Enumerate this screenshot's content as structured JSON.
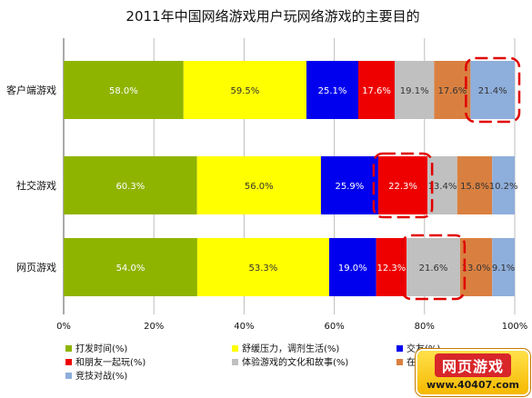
{
  "chart_data": {
    "type": "bar",
    "orientation": "horizontal",
    "stacked": "percent",
    "title": "2011年中国网络游戏用户玩网络游戏的主要目的",
    "categories": [
      "客户端游戏",
      "社交游戏",
      "网页游戏"
    ],
    "x_ticks": [
      "0%",
      "20%",
      "40%",
      "60%",
      "80%",
      "100%"
    ],
    "xlim": [
      0,
      100
    ],
    "grid": true,
    "legend_position": "bottom",
    "series": [
      {
        "name": "打发时间(%)",
        "color": "#8fb400",
        "label_color": "#ffffff",
        "values": [
          58.0,
          60.3,
          54.0
        ],
        "labels": [
          "58.0%",
          "60.3%",
          "54.0%"
        ]
      },
      {
        "name": "舒缓压力，调剂生活(%)",
        "color": "#ffff00",
        "label_color": "#333333",
        "values": [
          59.5,
          56.0,
          53.3
        ],
        "labels": [
          "59.5%",
          "56.0%",
          "53.3%"
        ]
      },
      {
        "name": "交友(%)",
        "color": "#0000ee",
        "label_color": "#ffffff",
        "values": [
          25.1,
          25.9,
          19.0
        ],
        "labels": [
          "25.1%",
          "25.9%",
          "19.0%"
        ]
      },
      {
        "name": "和朋友一起玩(%)",
        "color": "#ee0000",
        "label_color": "#ffffff",
        "values": [
          17.6,
          22.3,
          12.3
        ],
        "labels": [
          "17.6%",
          "22.3%",
          "12.3%"
        ]
      },
      {
        "name": "体验游戏的文化和故事(%)",
        "color": "#c0c0c0",
        "label_color": "#333333",
        "values": [
          19.1,
          13.4,
          21.6
        ],
        "labels": [
          "19.1%",
          "13.4%",
          "21.6%"
        ]
      },
      {
        "name": "在",
        "color": "#d98040",
        "label_color": "#333333",
        "values": [
          17.6,
          15.8,
          13.0
        ],
        "labels": [
          "17.6%",
          "15.8%",
          "13.0%"
        ]
      },
      {
        "name": "竞技对战(%)",
        "color": "#8eaedb",
        "label_color": "#333333",
        "values": [
          21.4,
          10.2,
          9.1
        ],
        "labels": [
          "21.4%",
          "10.2%",
          "9.1%"
        ]
      }
    ],
    "highlights": [
      {
        "category": 0,
        "series": 6
      },
      {
        "category": 1,
        "series": 3
      },
      {
        "category": 2,
        "series": 4
      }
    ]
  },
  "watermark": {
    "top": "网页游戏",
    "bottom": "www.40407.com"
  }
}
